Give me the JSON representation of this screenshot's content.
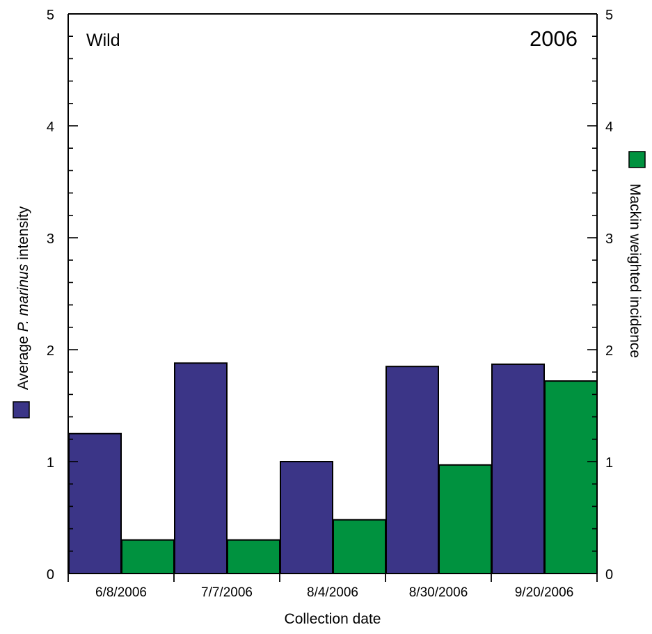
{
  "chart_data": {
    "type": "bar",
    "panel_label": "Wild",
    "year_label": "2006",
    "xlabel": "Collection date",
    "ylabel": {
      "before": "Average ",
      "italic": "P. marinus",
      "after": " intensity"
    },
    "y2label": "Mackin weighted incidence",
    "categories": [
      "6/8/2006",
      "7/7/2006",
      "8/4/2006",
      "8/30/2006",
      "9/20/2006"
    ],
    "ylim": [
      0,
      5
    ],
    "y2lim": [
      0,
      5
    ],
    "yticks": [
      "0",
      "1",
      "2",
      "3",
      "4",
      "5"
    ],
    "grid": false,
    "series": [
      {
        "values": [
          1.25,
          1.88,
          1.0,
          1.85,
          1.87
        ],
        "color": "#3b3587",
        "axis": "left"
      },
      {
        "values": [
          0.3,
          0.3,
          0.48,
          0.97,
          1.72
        ],
        "color": "#00923f",
        "axis": "right"
      }
    ]
  }
}
